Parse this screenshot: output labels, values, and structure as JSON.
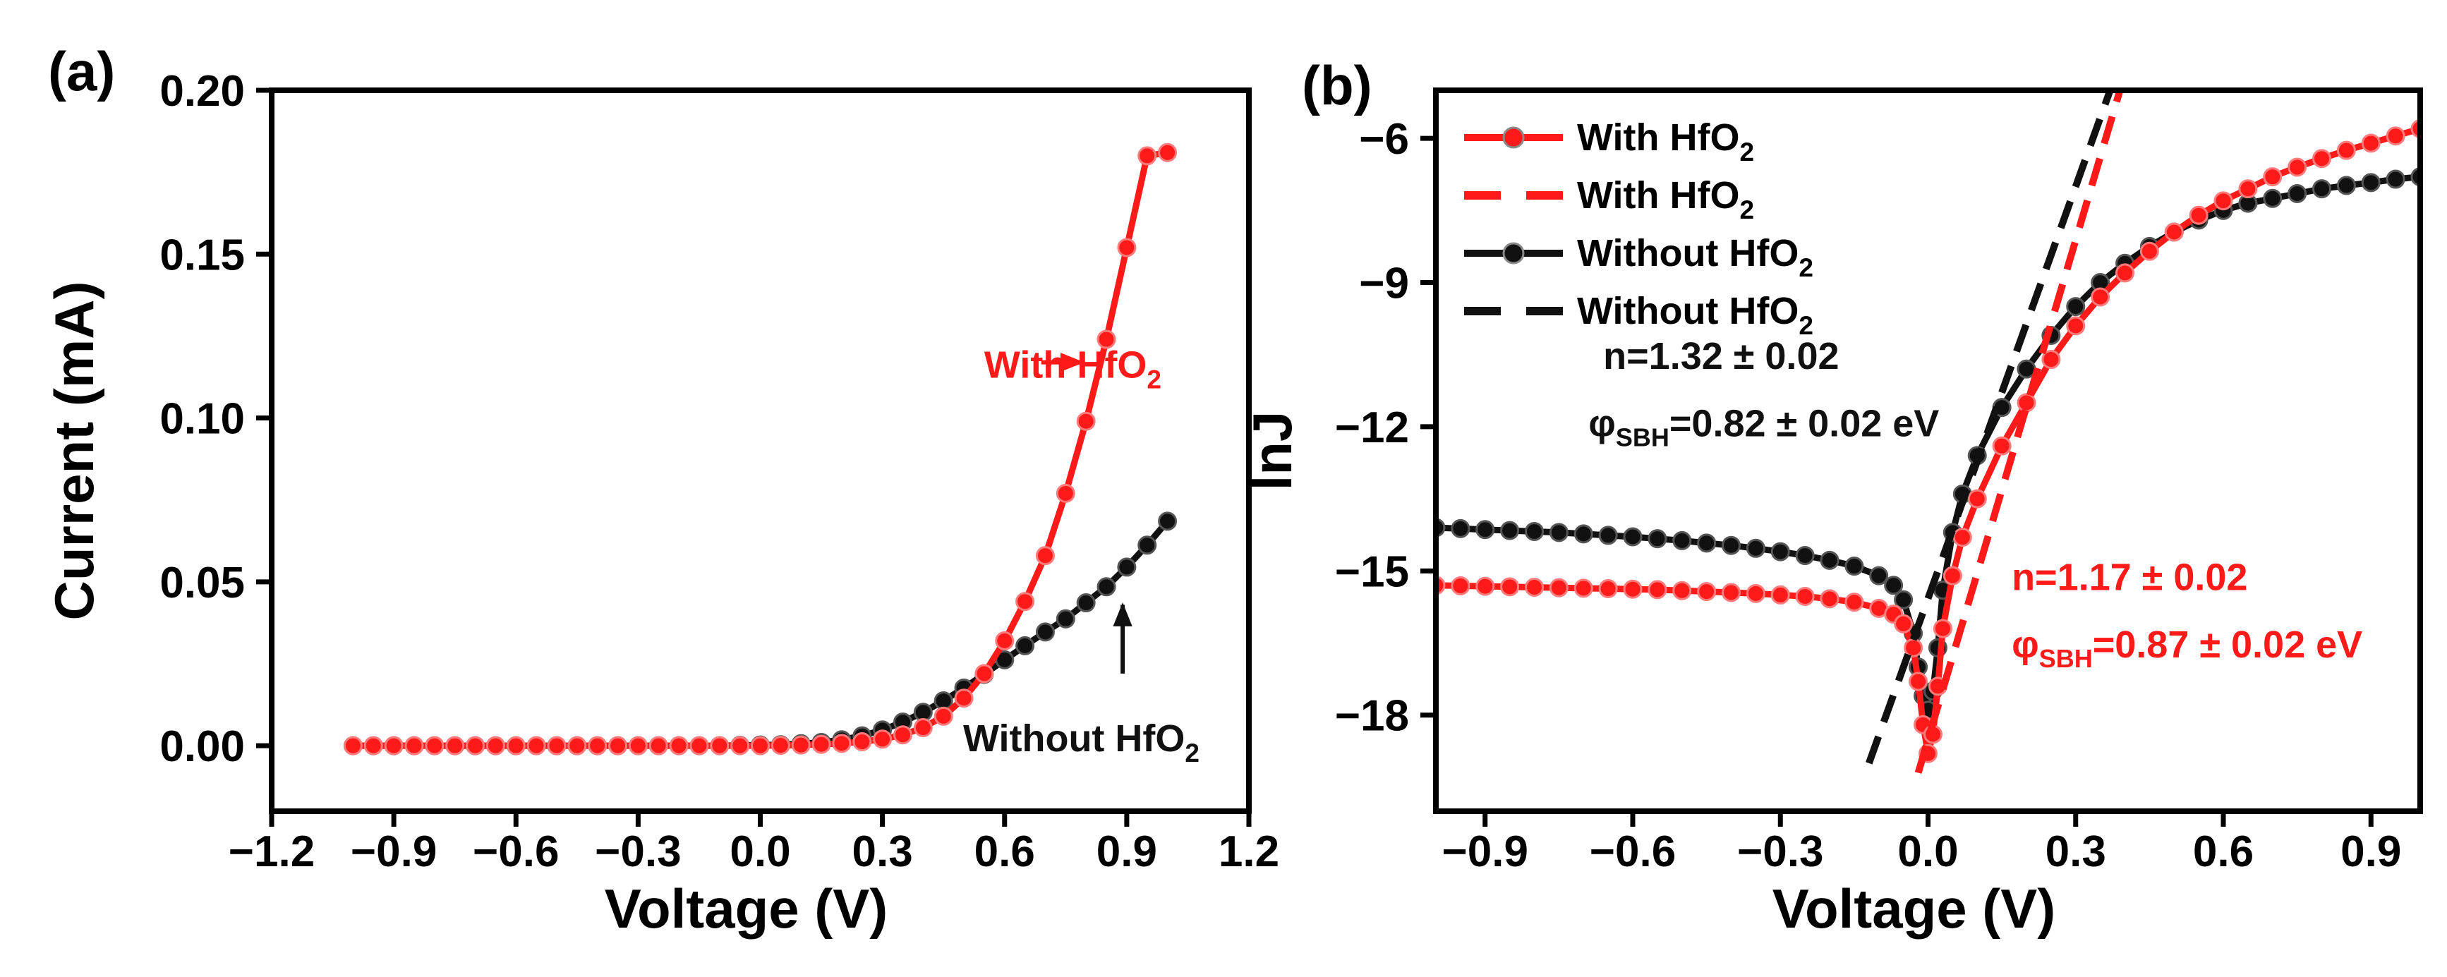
{
  "colors": {
    "red": "#ff1a1a",
    "black": "#111111",
    "axis": "#000000"
  },
  "chart_data": [
    {
      "type": "line",
      "panel_label": "(a)",
      "xlabel": "Voltage (V)",
      "ylabel": "Current (mA)",
      "xlim": [
        -1.2,
        1.2
      ],
      "ylim": [
        -0.02,
        0.2
      ],
      "xticks": [
        -1.2,
        -0.9,
        -0.6,
        -0.3,
        0.0,
        0.3,
        0.6,
        0.9,
        1.2
      ],
      "xtick_labels": [
        "−1.2",
        "−0.9",
        "−0.6",
        "−0.3",
        "0.0",
        "0.3",
        "0.6",
        "0.9",
        "1.2"
      ],
      "yticks": [
        0.0,
        0.05,
        0.1,
        0.15,
        0.2
      ],
      "ytick_labels": [
        "0.00",
        "0.05",
        "0.10",
        "0.15",
        "0.20"
      ],
      "legend": "none",
      "series": [
        {
          "name": "Without HfO2",
          "color": "#111111",
          "x": [
            -1.0,
            -0.95,
            -0.9,
            -0.85,
            -0.8,
            -0.75,
            -0.7,
            -0.65,
            -0.6,
            -0.55,
            -0.5,
            -0.45,
            -0.4,
            -0.35,
            -0.3,
            -0.25,
            -0.2,
            -0.15,
            -0.1,
            -0.05,
            0.0,
            0.05,
            0.1,
            0.15,
            0.2,
            0.25,
            0.3,
            0.35,
            0.4,
            0.45,
            0.5,
            0.55,
            0.6,
            0.65,
            0.7,
            0.75,
            0.8,
            0.85,
            0.9,
            0.95,
            1.0
          ],
          "y": [
            0,
            0,
            0,
            0,
            0,
            0,
            0,
            0,
            0,
            0,
            0,
            0,
            0,
            0,
            0,
            0,
            0,
            0,
            0,
            0.0001,
            0.0002,
            0.0003,
            0.0006,
            0.001,
            0.0018,
            0.003,
            0.0048,
            0.0072,
            0.0102,
            0.0137,
            0.0176,
            0.0218,
            0.0262,
            0.0305,
            0.0347,
            0.0387,
            0.0436,
            0.0485,
            0.0545,
            0.0612,
            0.0685
          ]
        },
        {
          "name": "With HfO2",
          "color": "#ff1a1a",
          "x": [
            -1.0,
            -0.95,
            -0.9,
            -0.85,
            -0.8,
            -0.75,
            -0.7,
            -0.65,
            -0.6,
            -0.55,
            -0.5,
            -0.45,
            -0.4,
            -0.35,
            -0.3,
            -0.25,
            -0.2,
            -0.15,
            -0.1,
            -0.05,
            0.0,
            0.05,
            0.1,
            0.15,
            0.2,
            0.25,
            0.3,
            0.35,
            0.4,
            0.45,
            0.5,
            0.55,
            0.6,
            0.65,
            0.7,
            0.75,
            0.8,
            0.85,
            0.9,
            0.95,
            1.0
          ],
          "y": [
            0,
            0,
            0,
            0,
            0,
            0,
            0,
            0,
            0,
            0,
            0,
            0,
            0,
            0,
            0,
            0,
            0,
            0,
            0,
            0,
            0,
            0.0001,
            0.0002,
            0.0004,
            0.0007,
            0.0012,
            0.002,
            0.0033,
            0.0055,
            0.009,
            0.0145,
            0.022,
            0.032,
            0.044,
            0.058,
            0.077,
            0.099,
            0.124,
            0.152,
            0.18,
            0.181
          ]
        }
      ],
      "annotations": [
        {
          "text": "With HfO",
          "sub": "2",
          "color": "#ff1a1a",
          "at": [
            0.55,
            0.117
          ],
          "arrow_from": [
            0.69,
            0.117
          ],
          "arrow_to": [
            0.79,
            0.117
          ]
        },
        {
          "text": "Without HfO",
          "sub": "2",
          "color": "#111111",
          "at": [
            0.4,
            -0.003
          ],
          "arrow_from": [
            0.89,
            0.022
          ],
          "arrow_to": [
            0.89,
            0.043
          ]
        }
      ]
    },
    {
      "type": "line",
      "panel_label": "(b)",
      "xlabel": "Voltage (V)",
      "ylabel": "lnJ",
      "xlim": [
        -1.0,
        1.0
      ],
      "ylim": [
        -20,
        -5
      ],
      "xticks": [
        -0.9,
        -0.6,
        -0.3,
        0.0,
        0.3,
        0.6,
        0.9
      ],
      "xtick_labels": [
        "−0.9",
        "−0.6",
        "−0.3",
        "0.0",
        "0.3",
        "0.6",
        "0.9"
      ],
      "yticks": [
        -18,
        -15,
        -12,
        -9,
        -6
      ],
      "ytick_labels": [
        "−18",
        "−15",
        "−12",
        "−9",
        "−6"
      ],
      "legend": "top-left",
      "legend_entries": [
        {
          "label": "With HfO",
          "sub": "2",
          "color": "#ff1a1a",
          "style": "solid-marker"
        },
        {
          "label": "With HfO",
          "sub": "2",
          "color": "#ff1a1a",
          "style": "dashed"
        },
        {
          "label": "Without HfO",
          "sub": "2",
          "color": "#111111",
          "style": "solid-marker"
        },
        {
          "label": "Without HfO",
          "sub": "2",
          "color": "#111111",
          "style": "dashed"
        }
      ],
      "series": [
        {
          "name": "Without HfO2",
          "color": "#111111",
          "x": [
            -1.0,
            -0.95,
            -0.9,
            -0.85,
            -0.8,
            -0.75,
            -0.7,
            -0.65,
            -0.6,
            -0.55,
            -0.5,
            -0.45,
            -0.4,
            -0.35,
            -0.3,
            -0.25,
            -0.2,
            -0.15,
            -0.1,
            -0.07,
            -0.05,
            -0.03,
            -0.02,
            -0.01,
            0.0,
            0.01,
            0.02,
            0.03,
            0.05,
            0.07,
            0.1,
            0.15,
            0.2,
            0.25,
            0.3,
            0.35,
            0.4,
            0.45,
            0.5,
            0.55,
            0.6,
            0.65,
            0.7,
            0.75,
            0.8,
            0.85,
            0.9,
            0.95,
            1.0
          ],
          "y": [
            -14.1,
            -14.12,
            -14.14,
            -14.16,
            -14.18,
            -14.2,
            -14.23,
            -14.26,
            -14.29,
            -14.33,
            -14.37,
            -14.42,
            -14.47,
            -14.53,
            -14.6,
            -14.68,
            -14.78,
            -14.9,
            -15.1,
            -15.3,
            -15.6,
            -16.3,
            -17.0,
            -17.6,
            -17.9,
            -17.5,
            -16.6,
            -15.4,
            -14.2,
            -13.4,
            -12.6,
            -11.6,
            -10.8,
            -10.1,
            -9.5,
            -9.0,
            -8.6,
            -8.25,
            -7.95,
            -7.7,
            -7.5,
            -7.35,
            -7.25,
            -7.15,
            -7.05,
            -6.98,
            -6.92,
            -6.85,
            -6.8
          ]
        },
        {
          "name": "With HfO2",
          "color": "#ff1a1a",
          "x": [
            -1.0,
            -0.95,
            -0.9,
            -0.85,
            -0.8,
            -0.75,
            -0.7,
            -0.65,
            -0.6,
            -0.55,
            -0.5,
            -0.45,
            -0.4,
            -0.35,
            -0.3,
            -0.25,
            -0.2,
            -0.15,
            -0.1,
            -0.07,
            -0.05,
            -0.03,
            -0.02,
            -0.01,
            0.0,
            0.01,
            0.02,
            0.03,
            0.05,
            0.07,
            0.1,
            0.15,
            0.2,
            0.25,
            0.3,
            0.35,
            0.4,
            0.45,
            0.5,
            0.55,
            0.6,
            0.65,
            0.7,
            0.75,
            0.8,
            0.85,
            0.9,
            0.95,
            1.0
          ],
          "y": [
            -15.3,
            -15.31,
            -15.32,
            -15.33,
            -15.34,
            -15.35,
            -15.36,
            -15.37,
            -15.38,
            -15.39,
            -15.41,
            -15.43,
            -15.45,
            -15.47,
            -15.5,
            -15.53,
            -15.58,
            -15.65,
            -15.78,
            -15.9,
            -16.1,
            -16.6,
            -17.3,
            -18.2,
            -18.8,
            -18.4,
            -17.4,
            -16.2,
            -15.1,
            -14.3,
            -13.5,
            -12.4,
            -11.5,
            -10.6,
            -9.9,
            -9.3,
            -8.8,
            -8.35,
            -7.95,
            -7.6,
            -7.3,
            -7.05,
            -6.8,
            -6.6,
            -6.42,
            -6.25,
            -6.1,
            -5.95,
            -5.8
          ]
        },
        {
          "name": "Without HfO2 fit",
          "color": "#111111",
          "dashed": true,
          "x": [
            -0.12,
            0.37
          ],
          "y": [
            -19.0,
            -5.0
          ]
        },
        {
          "name": "With HfO2 fit",
          "color": "#ff1a1a",
          "dashed": true,
          "x": [
            -0.02,
            0.39
          ],
          "y": [
            -19.2,
            -5.0
          ]
        }
      ],
      "annotations": [
        {
          "text": "n=1.32 ± 0.02",
          "color": "#111111",
          "at": [
            -0.66,
            -10.8
          ]
        },
        {
          "phi": "φ",
          "sub": "SBH",
          "text": "=0.82 ± 0.02 eV",
          "color": "#111111",
          "at": [
            -0.69,
            -12.2
          ]
        },
        {
          "text": "n=1.17 ± 0.02",
          "color": "#ff1a1a",
          "at": [
            0.17,
            -15.4
          ]
        },
        {
          "phi": "φ",
          "sub": "SBH",
          "text": "=0.87 ± 0.02 eV",
          "color": "#ff1a1a",
          "at": [
            0.17,
            -16.8
          ]
        }
      ]
    }
  ]
}
